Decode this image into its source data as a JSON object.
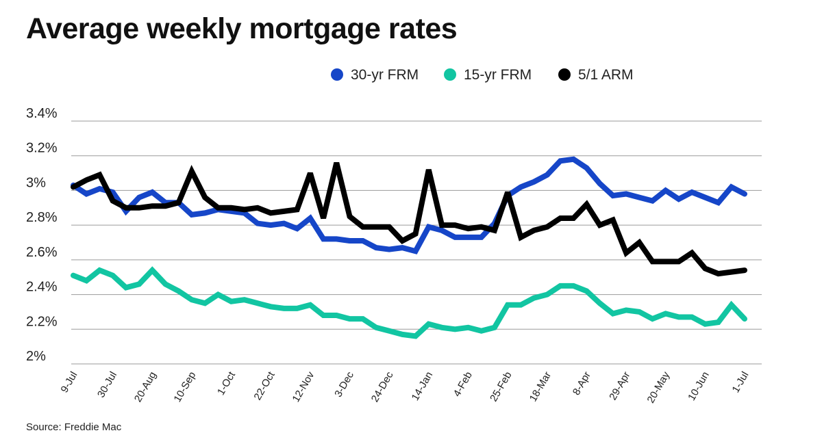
{
  "title": "Average weekly mortgage rates",
  "source": "Source: Freddie Mac",
  "chart_data": {
    "type": "line",
    "title": "Average weekly mortgage rates",
    "xlabel": "",
    "ylabel": "",
    "ylim": [
      2.0,
      3.4
    ],
    "y_ticks": [
      "2%",
      "2.2%",
      "2.4%",
      "2.6%",
      "2.8%",
      "3%",
      "3.2%",
      "3.4%"
    ],
    "y_tick_values": [
      2.0,
      2.2,
      2.4,
      2.6,
      2.8,
      3.0,
      3.2,
      3.4
    ],
    "x_tick_labels": [
      "9-Jul",
      "30-Jul",
      "20-Aug",
      "10-Sep",
      "1-Oct",
      "22-Oct",
      "12-Nov",
      "3-Dec",
      "24-Dec",
      "14-Jan",
      "4-Feb",
      "25-Feb",
      "18-Mar",
      "8-Apr",
      "29-Apr",
      "20-May",
      "10-Jun",
      "1-Jul"
    ],
    "grid": true,
    "legend_position": "top-right",
    "series": [
      {
        "name": "30-yr FRM",
        "color": "#1646c8",
        "values": [
          3.03,
          2.98,
          3.01,
          2.99,
          2.88,
          2.96,
          2.99,
          2.93,
          2.93,
          2.86,
          2.87,
          2.89,
          2.88,
          2.87,
          2.81,
          2.8,
          2.81,
          2.78,
          2.84,
          2.72,
          2.72,
          2.71,
          2.71,
          2.67,
          2.66,
          2.67,
          2.65,
          2.79,
          2.77,
          2.73,
          2.73,
          2.73,
          2.81,
          2.97,
          3.02,
          3.05,
          3.09,
          3.17,
          3.18,
          3.13,
          3.04,
          2.97,
          2.98,
          2.96,
          2.94,
          3.0,
          2.95,
          2.99,
          2.96,
          2.93,
          3.02,
          2.98
        ]
      },
      {
        "name": "15-yr FRM",
        "color": "#12c5a2",
        "values": [
          2.51,
          2.48,
          2.54,
          2.51,
          2.44,
          2.46,
          2.54,
          2.46,
          2.42,
          2.37,
          2.35,
          2.4,
          2.36,
          2.37,
          2.35,
          2.33,
          2.32,
          2.32,
          2.34,
          2.28,
          2.28,
          2.26,
          2.26,
          2.21,
          2.19,
          2.17,
          2.16,
          2.23,
          2.21,
          2.2,
          2.21,
          2.19,
          2.21,
          2.34,
          2.34,
          2.38,
          2.4,
          2.45,
          2.45,
          2.42,
          2.35,
          2.29,
          2.31,
          2.3,
          2.26,
          2.29,
          2.27,
          2.27,
          2.23,
          2.24,
          2.34,
          2.26
        ]
      },
      {
        "name": "5/1 ARM",
        "color": "#000000",
        "values": [
          3.02,
          3.06,
          3.09,
          2.94,
          2.9,
          2.9,
          2.91,
          2.91,
          2.93,
          3.11,
          2.96,
          2.9,
          2.9,
          2.89,
          2.9,
          2.87,
          2.88,
          2.89,
          3.1,
          2.84,
          3.16,
          2.85,
          2.79,
          2.79,
          2.79,
          2.71,
          2.75,
          3.12,
          2.8,
          2.8,
          2.78,
          2.79,
          2.77,
          2.99,
          2.73,
          2.77,
          2.79,
          2.84,
          2.84,
          2.92,
          2.8,
          2.83,
          2.64,
          2.7,
          2.59,
          2.59,
          2.59,
          2.64,
          2.55,
          2.52,
          2.53,
          2.54
        ]
      }
    ]
  }
}
